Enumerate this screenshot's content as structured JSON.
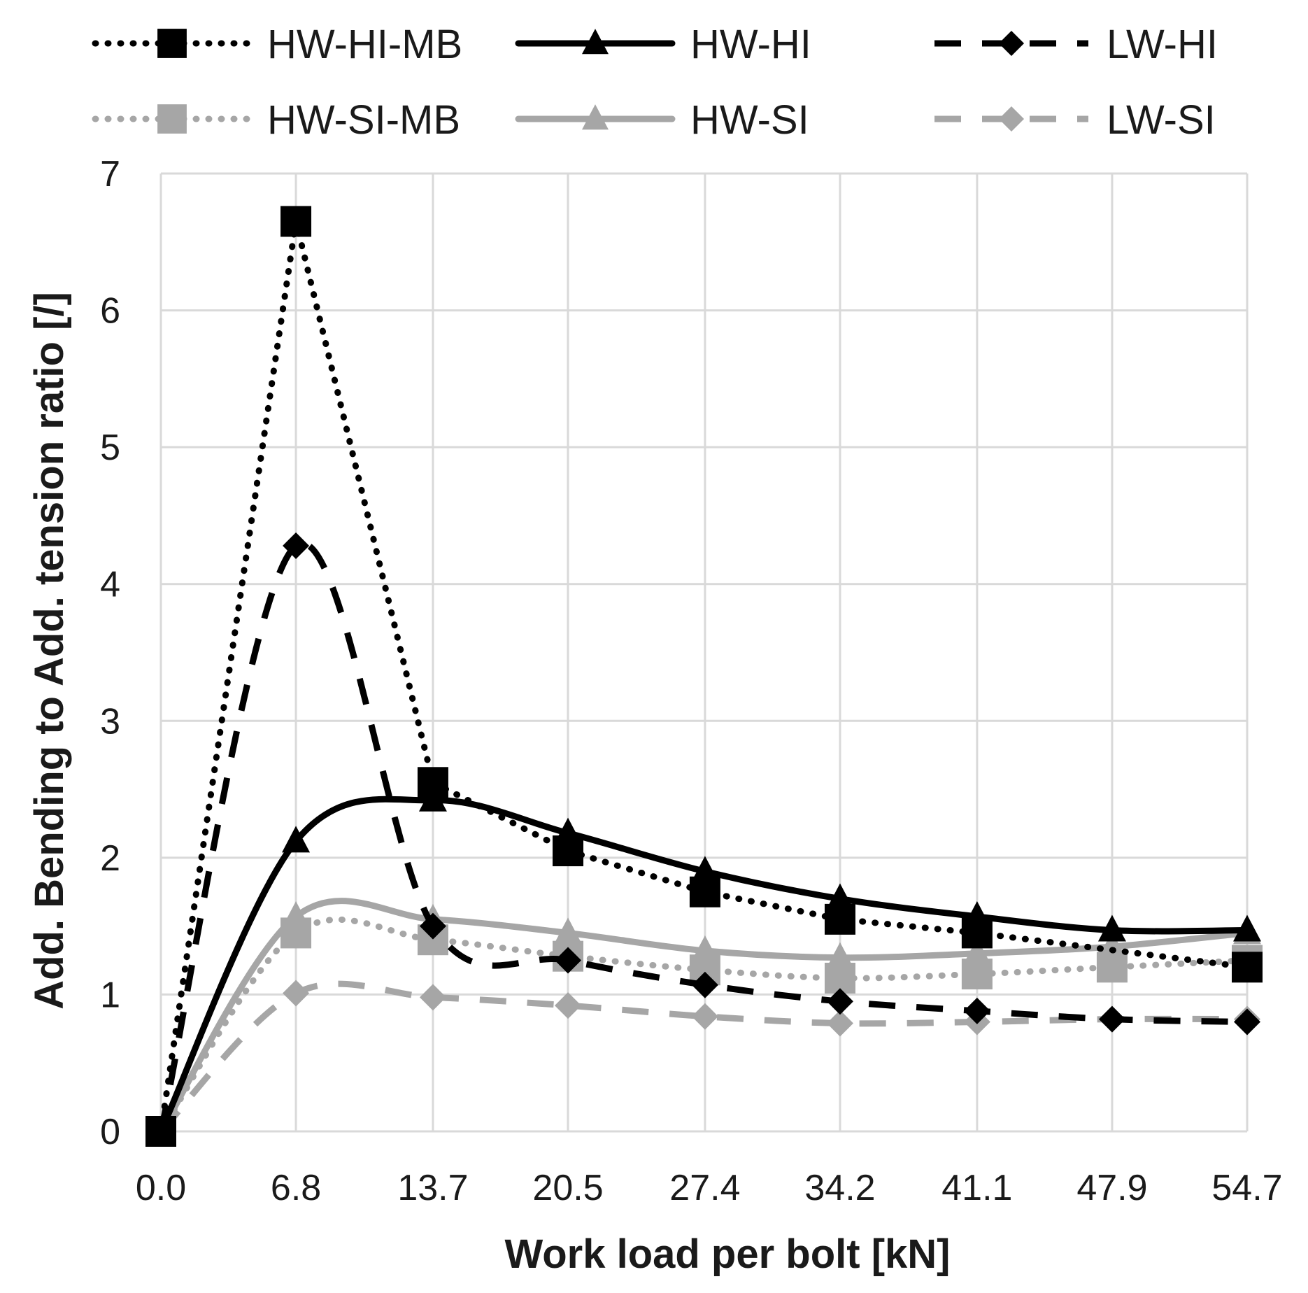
{
  "chart_data": {
    "type": "line",
    "title": "",
    "xlabel": "Work load per bolt [kN]",
    "ylabel": "Add. Bending to Add. tension ratio [/]",
    "categories": [
      "0.0",
      "6.8",
      "13.7",
      "20.5",
      "27.4",
      "34.2",
      "41.1",
      "47.9",
      "54.7"
    ],
    "x": [
      0.0,
      6.8,
      13.7,
      20.5,
      27.4,
      34.2,
      41.1,
      47.9,
      54.7
    ],
    "ylim": [
      0,
      7
    ],
    "yticks": [
      "0",
      "1",
      "2",
      "3",
      "4",
      "5",
      "6",
      "7"
    ],
    "grid": true,
    "legend_position": "top",
    "series": [
      {
        "name": "HW-HI-MB",
        "color": "#000000",
        "dash": "dotted",
        "marker": "square",
        "smooth": false,
        "values": [
          0,
          6.65,
          2.55,
          2.05,
          1.75,
          1.55,
          1.45,
          null,
          1.2
        ]
      },
      {
        "name": "HW-HI",
        "color": "#000000",
        "dash": "solid",
        "marker": "triangle",
        "smooth": true,
        "values": [
          0,
          2.12,
          2.42,
          2.18,
          1.9,
          1.7,
          1.57,
          1.47,
          1.47
        ]
      },
      {
        "name": "LW-HI",
        "color": "#000000",
        "dash": "dashed",
        "marker": "diamond",
        "smooth": true,
        "values": [
          0,
          4.28,
          1.5,
          1.25,
          1.07,
          0.95,
          0.88,
          0.82,
          0.8
        ]
      },
      {
        "name": "HW-SI-MB",
        "color": "#a6a6a6",
        "dash": "dotted",
        "marker": "square",
        "smooth": true,
        "values": [
          0,
          1.45,
          1.4,
          1.28,
          1.18,
          1.12,
          1.15,
          1.2,
          1.25
        ]
      },
      {
        "name": "HW-SI",
        "color": "#a6a6a6",
        "dash": "solid",
        "marker": "triangle",
        "smooth": true,
        "values": [
          0,
          1.57,
          1.55,
          1.45,
          1.32,
          1.27,
          1.3,
          1.35,
          1.45
        ]
      },
      {
        "name": "LW-SI",
        "color": "#a6a6a6",
        "dash": "dashed",
        "marker": "diamond",
        "smooth": true,
        "values": [
          0,
          1.01,
          0.98,
          0.92,
          0.84,
          0.79,
          0.8,
          0.82,
          0.82
        ]
      }
    ]
  }
}
